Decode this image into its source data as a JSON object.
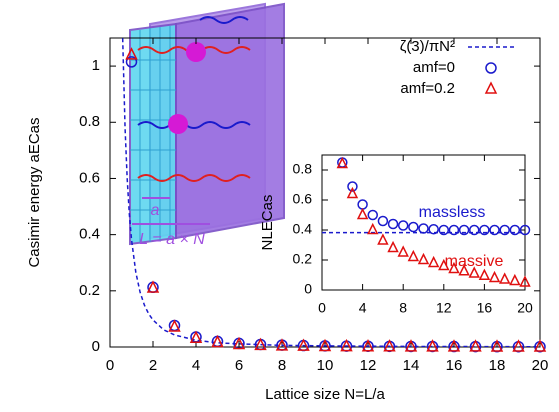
{
  "chart_data": [
    {
      "type": "scatter",
      "xlabel": "Lattice size N=L/a",
      "ylabel": "Casimir energy aECas",
      "xlim": [
        0,
        20
      ],
      "xticks": [
        0,
        2,
        4,
        6,
        8,
        10,
        12,
        14,
        16,
        18,
        20
      ],
      "ylim": [
        0,
        1.1
      ],
      "yticks": [
        0,
        0.2,
        0.4,
        0.6,
        0.8,
        1
      ],
      "legend": "top-right",
      "annotations": [
        "a",
        "L = a × N"
      ],
      "series": [
        {
          "name": "ζ(3)/πN²",
          "color": "#1a1acc",
          "style": "dashed-line",
          "x": [
            0.59,
            0.7,
            0.8,
            0.9,
            1,
            1.2,
            1.4,
            1.6,
            1.8,
            2,
            2.5,
            3,
            4,
            5,
            6,
            8,
            10,
            14,
            20
          ],
          "values": [
            1.099,
            0.781,
            0.598,
            0.472,
            0.383,
            0.266,
            0.195,
            0.149,
            0.118,
            0.096,
            0.061,
            0.043,
            0.024,
            0.015,
            0.011,
            0.006,
            0.004,
            0.002,
            0.001
          ]
        },
        {
          "name": "amf=0",
          "color": "#1a1acc",
          "style": "circle",
          "x": [
            1,
            2,
            3,
            4,
            5,
            6,
            7,
            8,
            9,
            10,
            11,
            12,
            13,
            14,
            15,
            16,
            17,
            18,
            19,
            20
          ],
          "values": [
            1.015,
            0.2125,
            0.0767,
            0.0356,
            0.02,
            0.0128,
            0.009,
            0.0067,
            0.0052,
            0.0041,
            0.0033,
            0.0028,
            0.0024,
            0.002,
            0.0018,
            0.0016,
            0.0014,
            0.0012,
            0.0011,
            0.001
          ]
        },
        {
          "name": "amf=0.2",
          "color": "#e01010",
          "style": "triangle",
          "x": [
            1,
            2,
            3,
            4,
            5,
            6,
            7,
            8,
            9,
            10,
            11,
            12,
            13,
            14,
            15,
            16,
            17,
            18,
            19,
            20
          ],
          "values": [
            1.04,
            0.21,
            0.071,
            0.031,
            0.016,
            0.009,
            0.006,
            0.004,
            0.003,
            0.002,
            0.0015,
            0.0011,
            0.0008,
            0.0006,
            0.0005,
            0.0004,
            0.0003,
            0.0002,
            0.0002,
            0.0001
          ]
        }
      ]
    },
    {
      "type": "scatter",
      "ylabel": "NLECas",
      "xlim": [
        0,
        20
      ],
      "xticks": [
        0,
        4,
        8,
        12,
        16,
        20
      ],
      "ylim": [
        0,
        0.9
      ],
      "yticks": [
        0,
        0.2,
        0.4,
        0.6,
        0.8
      ],
      "annotations": [
        "massless",
        "massive"
      ],
      "series": [
        {
          "color": "#1a1acc",
          "style": "dashed-line",
          "x": [
            0,
            20
          ],
          "values": [
            0.3826,
            0.3826
          ]
        },
        {
          "color": "#1a1acc",
          "style": "circle",
          "x": [
            2,
            3,
            4,
            5,
            6,
            7,
            8,
            9,
            10,
            11,
            12,
            13,
            14,
            15,
            16,
            17,
            18,
            19,
            20
          ],
          "values": [
            0.85,
            0.69,
            0.57,
            0.5,
            0.46,
            0.44,
            0.43,
            0.42,
            0.41,
            0.405,
            0.4,
            0.4,
            0.4,
            0.4,
            0.4,
            0.4,
            0.4,
            0.4,
            0.4
          ]
        },
        {
          "color": "#e01010",
          "style": "triangle",
          "x": [
            2,
            3,
            4,
            5,
            6,
            7,
            8,
            9,
            10,
            11,
            12,
            13,
            14,
            15,
            16,
            17,
            18,
            19,
            20
          ],
          "values": [
            0.84,
            0.64,
            0.5,
            0.4,
            0.33,
            0.28,
            0.25,
            0.22,
            0.2,
            0.18,
            0.16,
            0.14,
            0.125,
            0.11,
            0.095,
            0.08,
            0.07,
            0.06,
            0.05
          ]
        }
      ]
    }
  ]
}
